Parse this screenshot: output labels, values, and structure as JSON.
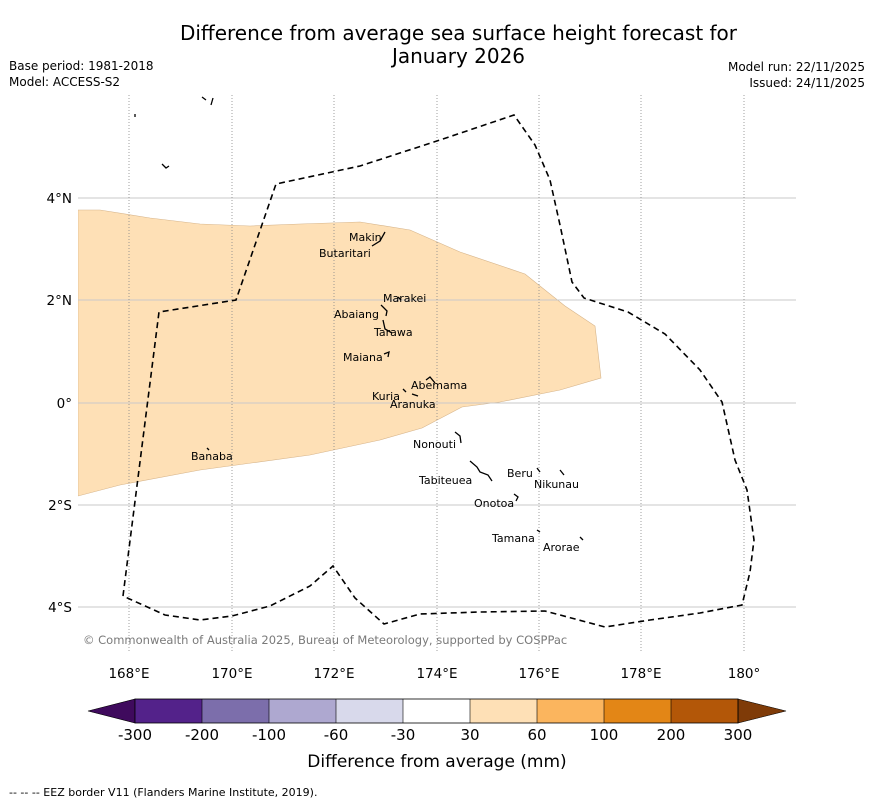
{
  "title_line1": "Difference from average sea surface height forecast for",
  "title_line2": "January 2026",
  "base_period": "Base period: 1981-2018",
  "model": "Model: ACCESS-S2",
  "model_run": "Model run: 22/11/2025",
  "issued": "Issued: 24/11/2025",
  "lat_labels": [
    "4°N",
    "2°N",
    "0°",
    "2°S",
    "4°S"
  ],
  "lon_labels": [
    "168°E",
    "170°E",
    "172°E",
    "174°E",
    "176°E",
    "178°E",
    "180°"
  ],
  "islands": [
    "Makin",
    "Butaritari",
    "Marakei",
    "Abaiang",
    "Tarawa",
    "Maiana",
    "Abemama",
    "Kuria",
    "Aranuka",
    "Nonouti",
    "Banaba",
    "Beru",
    "Nikunau",
    "Tabiteuea",
    "Onotoa",
    "Tamana",
    "Arorae"
  ],
  "copyright": "© Commonwealth of Australia 2025, Bureau of Meteorology, supported by COSPPac",
  "colorbar": {
    "ticks": [
      "-300",
      "-200",
      "-100",
      "-60",
      "-30",
      "30",
      "60",
      "100",
      "200",
      "300"
    ],
    "colors": [
      "#3f0a5d",
      "#53228a",
      "#7c6eab",
      "#aea8d0",
      "#d8d9eb",
      "#ffffff",
      "#fee0b6",
      "#fbb55e",
      "#e38616",
      "#b35708",
      "#7f3b08"
    ],
    "label": "Difference from average (mm)"
  },
  "footnote": "--  --  -- EEZ border V11 (Flanders Marine Institute, 2019)."
}
